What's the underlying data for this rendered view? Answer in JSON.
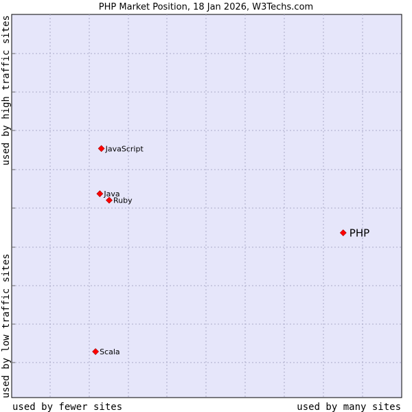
{
  "chart_data": {
    "type": "scatter",
    "title": "PHP Market Position, 18 Jan 2026, W3Techs.com",
    "xlabel_left": "used by fewer sites",
    "xlabel_right": "used by many sites",
    "ylabel_top": "used by high traffic sites",
    "ylabel_bottom": "used by low traffic sites",
    "xlim": [
      0,
      100
    ],
    "ylim": [
      0,
      100
    ],
    "grid": true,
    "colors": {
      "plot_bg": "#e6e6fa",
      "grid": "#a9a9c8",
      "point": "#ff0000",
      "border": "#000000"
    },
    "points": [
      {
        "name": "PHP",
        "x": 85,
        "y": 43,
        "highlight": true
      },
      {
        "name": "JavaScript",
        "x": 23,
        "y": 65,
        "highlight": false
      },
      {
        "name": "Java",
        "x": 22.6,
        "y": 53.2,
        "highlight": false
      },
      {
        "name": "Ruby",
        "x": 25,
        "y": 51.5,
        "highlight": false
      },
      {
        "name": "Scala",
        "x": 21.5,
        "y": 12,
        "highlight": false
      }
    ]
  }
}
